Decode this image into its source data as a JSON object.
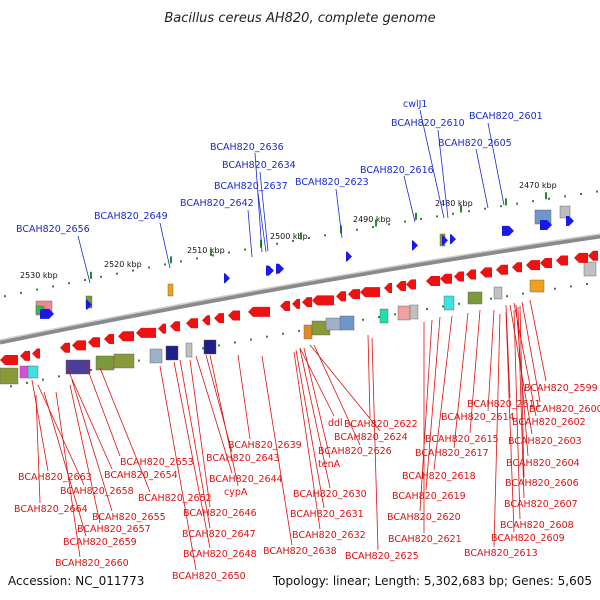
{
  "title": "Bacillus cereus AH820, complete genome",
  "footer": {
    "accession": "Accession: NC_011773",
    "summary": "Topology: linear; Length: 5,302,683 bp; Genes: 5,605"
  },
  "colors": {
    "forward_gene": "#1a1ae6",
    "reverse_gene": "#ee1111",
    "backbone": "#8a8a8a",
    "tick": "#2a8a2a",
    "label_blue": "#1a2bd0",
    "label_red": "#dd1111"
  },
  "scale_labels": [
    "2470 kbp",
    "2480 kbp",
    "2490 kbp",
    "2500 kbp",
    "2510 kbp",
    "2520 kbp",
    "2530 kbp"
  ],
  "top_labels": [
    "cwlJ1",
    "BCAH820_2601",
    "BCAH820_2610",
    "BCAH820_2605",
    "BCAH820_2636",
    "BCAH820_2634",
    "BCAH820_2616",
    "BCAH820_2637",
    "BCAH820_2623",
    "BCAH820_2642",
    "BCAH820_2649",
    "BCAH820_2656"
  ],
  "bottom_labels": [
    "BCAH820_2599",
    "BCAH820_2600",
    "BCAH820_2611",
    "BCAH820_2602",
    "BCAH820_2614",
    "BCAH820_2622",
    "ddl",
    "BCAH820_2603",
    "BCAH820_2624",
    "BCAH820_2615",
    "BCAH820_2639",
    "BCAH820_2626",
    "BCAH820_2617",
    "BCAH820_2643",
    "BCAH820_2604",
    "BCAH820_2653",
    "tenA",
    "BCAH820_2618",
    "BCAH820_2663",
    "BCAH820_2654",
    "BCAH820_2644",
    "BCAH820_2606",
    "BCAH820_2658",
    "cypA",
    "BCAH820_2630",
    "BCAH820_2619",
    "BCAH820_2652",
    "BCAH820_2607",
    "BCAH820_2664",
    "BCAH820_2655",
    "BCAH820_2646",
    "BCAH820_2631",
    "BCAH820_2620",
    "BCAH820_2608",
    "BCAH820_2657",
    "BCAH820_2647",
    "BCAH820_2632",
    "BCAH820_2621",
    "BCAH820_2609",
    "BCAH820_2659",
    "BCAH820_2648",
    "BCAH820_2638",
    "BCAH820_2625",
    "BCAH820_2613",
    "BCAH820_2660",
    "BCAH820_2650"
  ]
}
